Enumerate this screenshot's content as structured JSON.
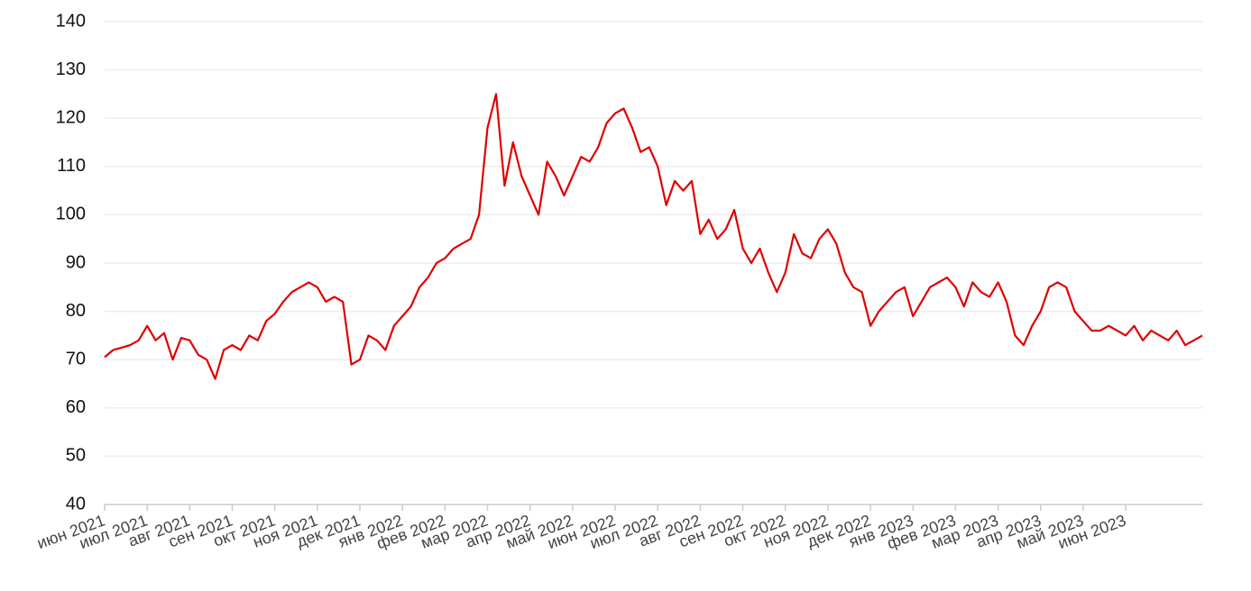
{
  "chart_data": {
    "type": "line",
    "categories": [
      "июн 2021",
      null,
      null,
      null,
      null,
      "июл 2021",
      null,
      null,
      null,
      null,
      "авг 2021",
      null,
      null,
      null,
      null,
      "сен 2021",
      null,
      null,
      null,
      null,
      "окт 2021",
      null,
      null,
      null,
      null,
      "ноя 2021",
      null,
      null,
      null,
      null,
      "дек 2021",
      null,
      null,
      null,
      null,
      "янв 2022",
      null,
      null,
      null,
      null,
      "фев 2022",
      null,
      null,
      null,
      null,
      "мар 2022",
      null,
      null,
      null,
      null,
      "апр 2022",
      null,
      null,
      null,
      null,
      "май 2022",
      null,
      null,
      null,
      null,
      "июн 2022",
      null,
      null,
      null,
      null,
      "июл 2022",
      null,
      null,
      null,
      null,
      "авг 2022",
      null,
      null,
      null,
      null,
      "сен 2022",
      null,
      null,
      null,
      null,
      "окт 2022",
      null,
      null,
      null,
      null,
      "ноя 2022",
      null,
      null,
      null,
      null,
      "дек 2022",
      null,
      null,
      null,
      null,
      "янв 2023",
      null,
      null,
      null,
      null,
      "фев 2023",
      null,
      null,
      null,
      null,
      "мар 2023",
      null,
      null,
      null,
      null,
      "апр 2023",
      null,
      null,
      null,
      null,
      "май 2023",
      null,
      null,
      null,
      null,
      "июн 2023",
      null,
      null,
      null,
      null,
      null,
      null,
      null,
      null,
      null
    ],
    "series": [
      {
        "color": "#e00000",
        "values": [
          70.5,
          72,
          72.5,
          73,
          74,
          77,
          74,
          75.5,
          70,
          74.5,
          74,
          71,
          70,
          66,
          72,
          73,
          72,
          75,
          74,
          78,
          79.5,
          82,
          84,
          85,
          86,
          85,
          82,
          83,
          82,
          69,
          70,
          75,
          74,
          72,
          77,
          79,
          81,
          85,
          87,
          90,
          91,
          93,
          94,
          95,
          100,
          118,
          125,
          106,
          115,
          108,
          104,
          100,
          111,
          108,
          104,
          108,
          112,
          111,
          114,
          119,
          121,
          122,
          118,
          113,
          114,
          110,
          102,
          107,
          105,
          107,
          96,
          99,
          95,
          97,
          101,
          93,
          90,
          93,
          88,
          84,
          88,
          96,
          92,
          91,
          95,
          97,
          94,
          88,
          85,
          84,
          77,
          80,
          82,
          84,
          85,
          79,
          82,
          85,
          86,
          87,
          85,
          81,
          86,
          84,
          83,
          86,
          82,
          75,
          73,
          77,
          80,
          85,
          86,
          85,
          80,
          78,
          76,
          76,
          77,
          76,
          75,
          77,
          74,
          76,
          75,
          74,
          76,
          73,
          74,
          75
        ]
      }
    ],
    "ylim": [
      40,
      140
    ],
    "yticks": [
      40,
      50,
      60,
      70,
      80,
      90,
      100,
      110,
      120,
      130,
      140
    ],
    "grid": true
  }
}
